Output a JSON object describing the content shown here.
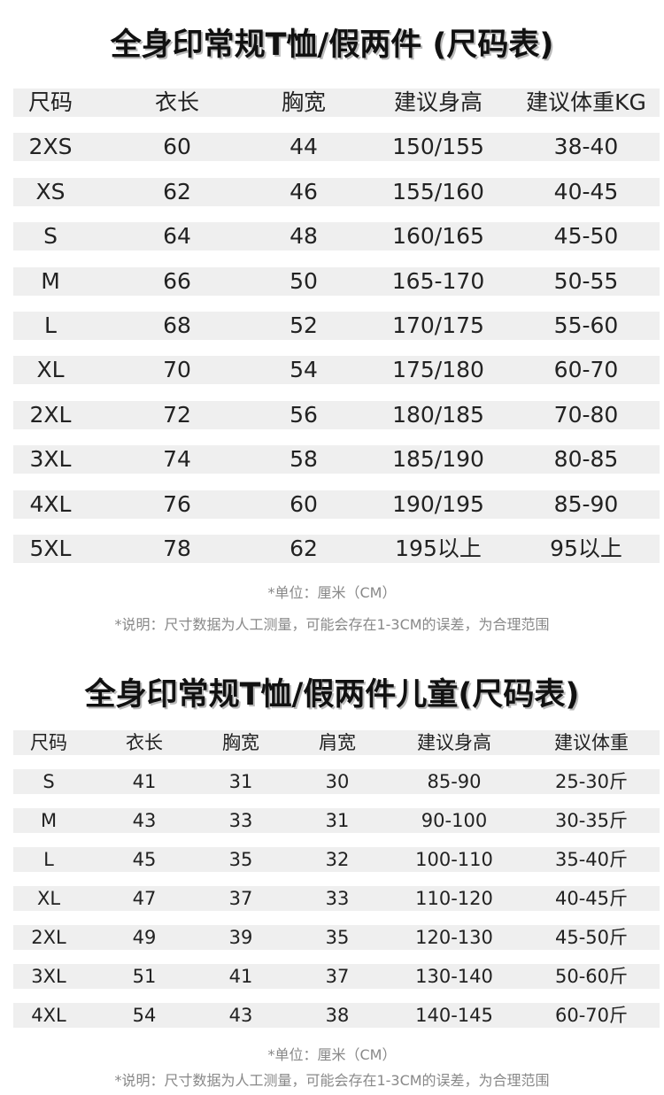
{
  "adult": {
    "title": "全身印常规T恤/假两件 (尺码表)",
    "headers": [
      "尺码",
      "衣长",
      "胸宽",
      "建议身高",
      "建议体重KG"
    ],
    "rows": [
      [
        "2XS",
        "60",
        "44",
        "150/155",
        "38-40"
      ],
      [
        "XS",
        "62",
        "46",
        "155/160",
        "40-45"
      ],
      [
        "S",
        "64",
        "48",
        "160/165",
        "45-50"
      ],
      [
        "M",
        "66",
        "50",
        "165-170",
        "50-55"
      ],
      [
        "L",
        "68",
        "52",
        "170/175",
        "55-60"
      ],
      [
        "XL",
        "70",
        "54",
        "175/180",
        "60-70"
      ],
      [
        "2XL",
        "72",
        "56",
        "180/185",
        "70-80"
      ],
      [
        "3XL",
        "74",
        "58",
        "185/190",
        "80-85"
      ],
      [
        "4XL",
        "76",
        "60",
        "190/195",
        "85-90"
      ],
      [
        "5XL",
        "78",
        "62",
        "195以上",
        "95以上"
      ]
    ],
    "unit_note": "*单位：厘米（CM）",
    "explain_note": "*说明：尺寸数据为人工测量，可能会存在1-3CM的误差，为合理范围"
  },
  "kid": {
    "title": "全身印常规T恤/假两件儿童(尺码表)",
    "headers": [
      "尺码",
      "衣长",
      "胸宽",
      "肩宽",
      "建议身高",
      "建议体重"
    ],
    "rows": [
      [
        "S",
        "41",
        "31",
        "30",
        "85-90",
        "25-30斤"
      ],
      [
        "M",
        "43",
        "33",
        "31",
        "90-100",
        "30-35斤"
      ],
      [
        "L",
        "45",
        "35",
        "32",
        "100-110",
        "35-40斤"
      ],
      [
        "XL",
        "47",
        "37",
        "33",
        "110-120",
        "40-45斤"
      ],
      [
        "2XL",
        "49",
        "39",
        "35",
        "120-130",
        "45-50斤"
      ],
      [
        "3XL",
        "51",
        "41",
        "37",
        "130-140",
        "50-60斤"
      ],
      [
        "4XL",
        "54",
        "43",
        "38",
        "140-145",
        "60-70斤"
      ]
    ],
    "unit_note": "*单位：厘米（CM）",
    "explain_note": "*说明：尺寸数据为人工测量，可能会存在1-3CM的误差，为合理范围"
  },
  "colors": {
    "row_bg": "#efefef",
    "text": "#222222",
    "note": "#888888"
  }
}
